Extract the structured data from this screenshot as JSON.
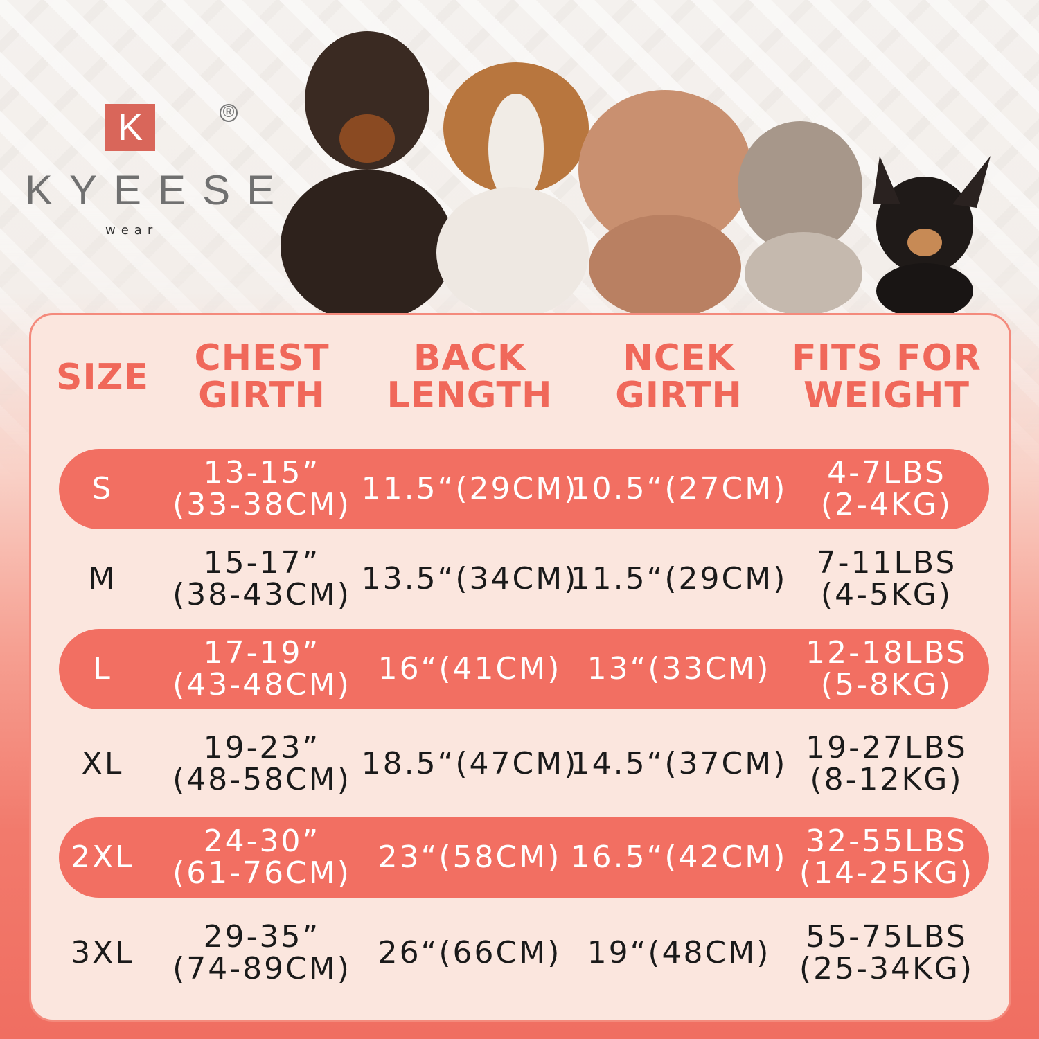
{
  "brand": {
    "mark": "K",
    "name": "KYEESE",
    "sub": "wear",
    "registered": "®"
  },
  "colors": {
    "accent": "#f26f62",
    "header_text": "#f0685a",
    "panel": "#fbe6de"
  },
  "headers": [
    [
      "SIZE",
      ""
    ],
    [
      "CHEST",
      "GIRTH"
    ],
    [
      "BACK",
      "LENGTH"
    ],
    [
      "NCEK",
      "GIRTH"
    ],
    [
      "FITS FOR",
      "WEIGHT"
    ]
  ],
  "rows": [
    {
      "size": "S",
      "chest": [
        "13-15”",
        "(33-38CM)"
      ],
      "back": "11.5“(29CM)",
      "neck": "10.5“(27CM)",
      "weight": [
        "4-7LBS",
        "(2-4KG)"
      ],
      "highlight": true
    },
    {
      "size": "M",
      "chest": [
        "15-17”",
        "(38-43CM)"
      ],
      "back": "13.5“(34CM)",
      "neck": "11.5“(29CM)",
      "weight": [
        "7-11LBS",
        "(4-5KG)"
      ],
      "highlight": false
    },
    {
      "size": "L",
      "chest": [
        "17-19”",
        "(43-48CM)"
      ],
      "back": "16“(41CM)",
      "neck": "13“(33CM)",
      "weight": [
        "12-18LBS",
        "(5-8KG)"
      ],
      "highlight": true
    },
    {
      "size": "XL",
      "chest": [
        "19-23”",
        "(48-58CM)"
      ],
      "back": "18.5“(47CM)",
      "neck": "14.5“(37CM)",
      "weight": [
        "19-27LBS",
        "(8-12KG)"
      ],
      "highlight": false
    },
    {
      "size": "2XL",
      "chest": [
        "24-30”",
        "(61-76CM)"
      ],
      "back": "23“(58CM)",
      "neck": "16.5“(42CM)",
      "weight": [
        "32-55LBS",
        "(14-25KG)"
      ],
      "highlight": true
    },
    {
      "size": "3XL",
      "chest": [
        "29-35”",
        "(74-89CM)"
      ],
      "back": "26“(66CM)",
      "neck": "19“(48CM)",
      "weight": [
        "55-75LBS",
        "(25-34KG)"
      ],
      "highlight": false
    }
  ]
}
